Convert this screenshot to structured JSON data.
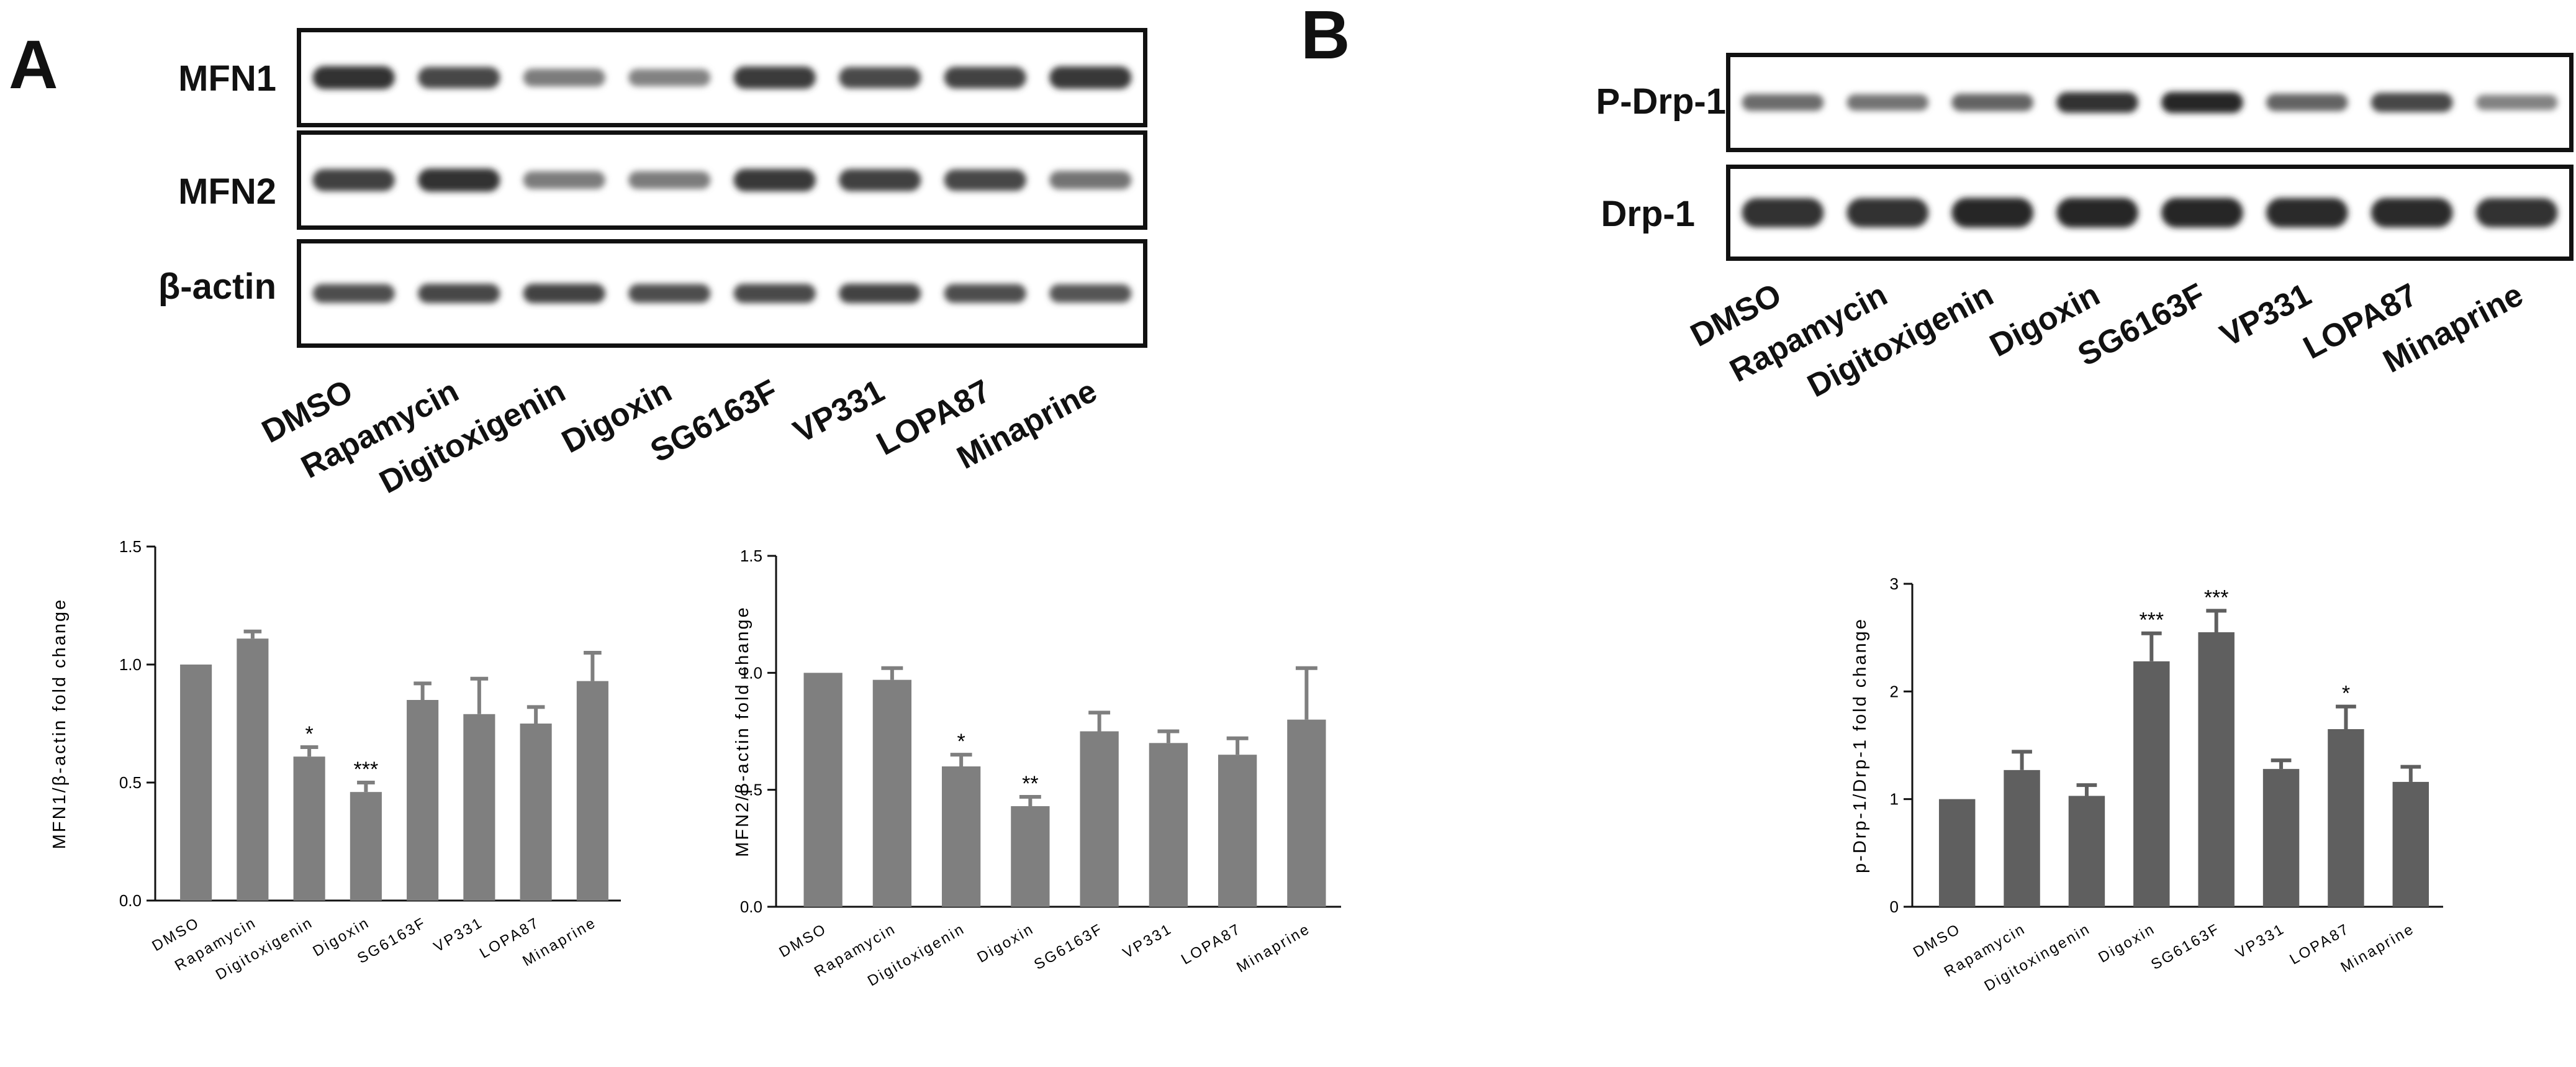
{
  "panel_a": {
    "letter": "A",
    "blot_rows": [
      {
        "label": "MFN1",
        "intensities": [
          0.95,
          0.8,
          0.45,
          0.4,
          0.88,
          0.78,
          0.82,
          0.9
        ]
      },
      {
        "label": "MFN2",
        "intensities": [
          0.85,
          0.95,
          0.45,
          0.45,
          0.9,
          0.85,
          0.8,
          0.5
        ]
      },
      {
        "label": "β-actin",
        "intensities": [
          0.75,
          0.8,
          0.82,
          0.75,
          0.78,
          0.82,
          0.75,
          0.7
        ]
      }
    ],
    "lane_labels": [
      "DMSO",
      "Rapamycin",
      "Digitoxigenin",
      "Digoxin",
      "SG6163F",
      "VP331",
      "LOPA87",
      "Minaprine"
    ]
  },
  "panel_b": {
    "letter": "B",
    "blot_rows": [
      {
        "label": "P-Drp-1",
        "intensities": [
          0.55,
          0.5,
          0.6,
          0.95,
          1.0,
          0.6,
          0.8,
          0.4
        ]
      },
      {
        "label": "Drp-1",
        "intensities": [
          0.95,
          0.95,
          1.0,
          1.0,
          1.0,
          0.98,
          0.98,
          0.95
        ]
      }
    ],
    "lane_labels": [
      "DMSO",
      "Rapamycin",
      "Digitoxigenin",
      "Digoxin",
      "SG6163F",
      "VP331",
      "LOPA87",
      "Minaprine"
    ]
  },
  "chart_data": [
    {
      "type": "bar",
      "ylabel": "MFN1/β-actin fold change",
      "xlabel": "",
      "title": "",
      "categories": [
        "DMSO",
        "Rapamycin",
        "Digitoxigenin",
        "Digoxin",
        "SG6163F",
        "VP331",
        "LOPA87",
        "Minaprine"
      ],
      "values": [
        1.0,
        1.11,
        0.61,
        0.46,
        0.85,
        0.79,
        0.75,
        0.93
      ],
      "errors": [
        0.0,
        0.03,
        0.04,
        0.04,
        0.07,
        0.15,
        0.07,
        0.12
      ],
      "significance": [
        "",
        "",
        "*",
        "***",
        "",
        "",
        "",
        ""
      ],
      "ylim": [
        0,
        1.5
      ],
      "yticks": [
        "0.0",
        "0.5",
        "1.0",
        "1.5"
      ],
      "bar_color": "#7f7f7f"
    },
    {
      "type": "bar",
      "ylabel": "MFN2/β-actin fold change",
      "xlabel": "",
      "title": "",
      "categories": [
        "DMSO",
        "Rapamycin",
        "Digitoxigenin",
        "Digoxin",
        "SG6163F",
        "VP331",
        "LOPA87",
        "Minaprine"
      ],
      "values": [
        1.0,
        0.97,
        0.6,
        0.43,
        0.75,
        0.7,
        0.65,
        0.8
      ],
      "errors": [
        0.0,
        0.05,
        0.05,
        0.04,
        0.08,
        0.05,
        0.07,
        0.22
      ],
      "significance": [
        "",
        "",
        "*",
        "**",
        "",
        "",
        "",
        ""
      ],
      "ylim": [
        0,
        1.5
      ],
      "yticks": [
        "0.0",
        "0.5",
        "1.0",
        "1.5"
      ],
      "bar_color": "#7f7f7f"
    },
    {
      "type": "bar",
      "ylabel": "p-Drp-1/Drp-1 fold change",
      "xlabel": "",
      "title": "",
      "categories": [
        "DMSO",
        "Rapamycin",
        "Digitoxingenin",
        "Digoxin",
        "SG6163F",
        "VP331",
        "LOPA87",
        "Minaprine"
      ],
      "values": [
        1.0,
        1.27,
        1.03,
        2.28,
        2.55,
        1.28,
        1.65,
        1.16
      ],
      "errors": [
        0.0,
        0.17,
        0.1,
        0.26,
        0.2,
        0.08,
        0.21,
        0.14
      ],
      "significance": [
        "",
        "",
        "",
        "***",
        "***",
        "",
        "*",
        ""
      ],
      "ylim": [
        0,
        3
      ],
      "yticks": [
        "0",
        "1",
        "2",
        "3"
      ],
      "bar_color": "#5f5f5f"
    }
  ]
}
